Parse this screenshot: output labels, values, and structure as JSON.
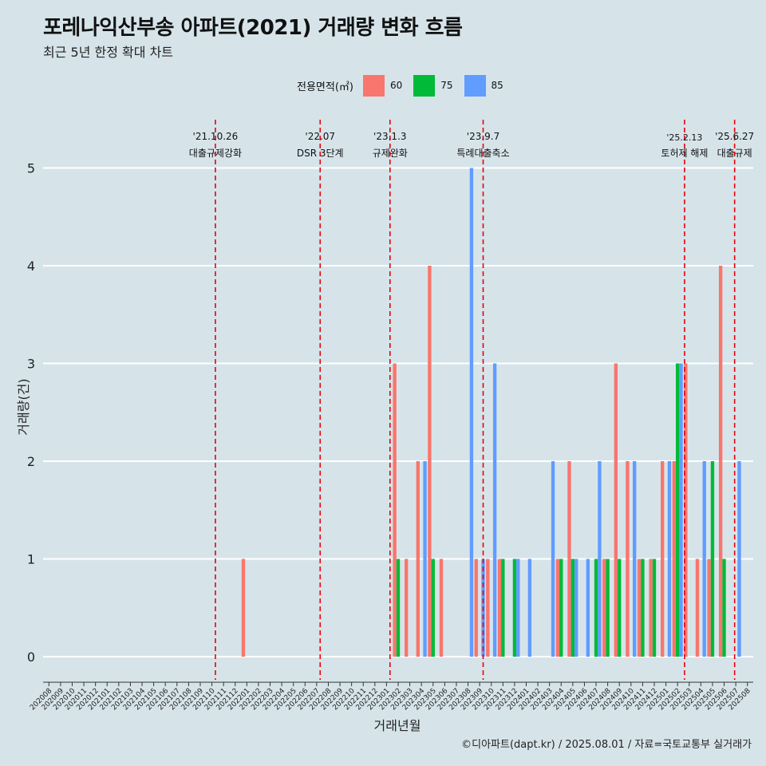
{
  "title": "포레나익산부송 아파트(2021) 거래량 변화 흐름",
  "subtitle": "최근 5년 한정 확대 차트",
  "caption": "©디아파트(dapt.kr) / 2025.08.01 / 자료=국토교통부 실거래가",
  "legend": {
    "title": "전용면적(㎡)",
    "items": [
      {
        "label": "60",
        "color": "#f8766d"
      },
      {
        "label": "75",
        "color": "#00ba38"
      },
      {
        "label": "85",
        "color": "#619cff"
      }
    ]
  },
  "chart_data": {
    "type": "bar",
    "xlabel": "거래년월",
    "ylabel": "거래량(건)",
    "ylim": [
      0,
      5
    ],
    "yticks": [
      0,
      1,
      2,
      3,
      4,
      5
    ],
    "grid": true,
    "legend_position": "top",
    "categories": [
      "202008",
      "202009",
      "202010",
      "202011",
      "202012",
      "202101",
      "202102",
      "202103",
      "202104",
      "202105",
      "202106",
      "202107",
      "202108",
      "202109",
      "202110",
      "202111",
      "202112",
      "202201",
      "202202",
      "202203",
      "202204",
      "202205",
      "202206",
      "202207",
      "202208",
      "202209",
      "202210",
      "202211",
      "202212",
      "202301",
      "202302",
      "202303",
      "202304",
      "202305",
      "202306",
      "202307",
      "202308",
      "202309",
      "202310",
      "202311",
      "202312",
      "202401",
      "202402",
      "202403",
      "202404",
      "202405",
      "202406",
      "202407",
      "202408",
      "202409",
      "202410",
      "202411",
      "202412",
      "202501",
      "202502",
      "202503",
      "202504",
      "202505",
      "202506",
      "202507",
      "202508"
    ],
    "series": [
      {
        "name": "60",
        "color": "#f8766d",
        "values": [
          0,
          0,
          0,
          0,
          0,
          0,
          0,
          0,
          0,
          0,
          0,
          0,
          0,
          0,
          0,
          0,
          0,
          1,
          0,
          0,
          0,
          0,
          0,
          0,
          0,
          0,
          0,
          0,
          0,
          0,
          3,
          1,
          2,
          4,
          1,
          0,
          0,
          1,
          1,
          1,
          0,
          0,
          0,
          0,
          1,
          2,
          0,
          0,
          1,
          3,
          2,
          1,
          1,
          2,
          2,
          3,
          1,
          1,
          4,
          0,
          0
        ]
      },
      {
        "name": "75",
        "color": "#00ba38",
        "values": [
          0,
          0,
          0,
          0,
          0,
          0,
          0,
          0,
          0,
          0,
          0,
          0,
          0,
          0,
          0,
          0,
          0,
          0,
          0,
          0,
          0,
          0,
          0,
          0,
          0,
          0,
          0,
          0,
          0,
          0,
          1,
          0,
          0,
          1,
          0,
          0,
          0,
          0,
          0,
          1,
          1,
          0,
          0,
          0,
          1,
          1,
          0,
          1,
          1,
          1,
          0,
          1,
          1,
          0,
          3,
          0,
          0,
          2,
          1,
          0,
          0
        ]
      },
      {
        "name": "85",
        "color": "#619cff",
        "values": [
          0,
          0,
          0,
          0,
          0,
          0,
          0,
          0,
          0,
          0,
          0,
          0,
          0,
          0,
          0,
          0,
          0,
          0,
          0,
          0,
          0,
          0,
          0,
          0,
          0,
          0,
          0,
          0,
          0,
          0,
          0,
          0,
          2,
          0,
          0,
          0,
          5,
          1,
          3,
          0,
          1,
          1,
          0,
          2,
          0,
          1,
          1,
          2,
          0,
          0,
          2,
          0,
          0,
          2,
          3,
          0,
          2,
          0,
          0,
          2,
          0
        ]
      }
    ],
    "events": [
      {
        "index": 14.3,
        "date": "'21.10.26",
        "label": "대출규제강화"
      },
      {
        "index": 23.3,
        "date": "'22.07",
        "label": "DSR 3단계"
      },
      {
        "index": 29.3,
        "date": "'23.1.3",
        "label": "규제완화"
      },
      {
        "index": 37.3,
        "date": "'23.9.7",
        "label": "특례대출축소"
      },
      {
        "index": 54.6,
        "date": "'25.2.13",
        "label": "토허제 해제"
      },
      {
        "index": 58.9,
        "date": "'25.6.27",
        "label": "대출규제"
      }
    ],
    "event_color": "#e8000b"
  }
}
